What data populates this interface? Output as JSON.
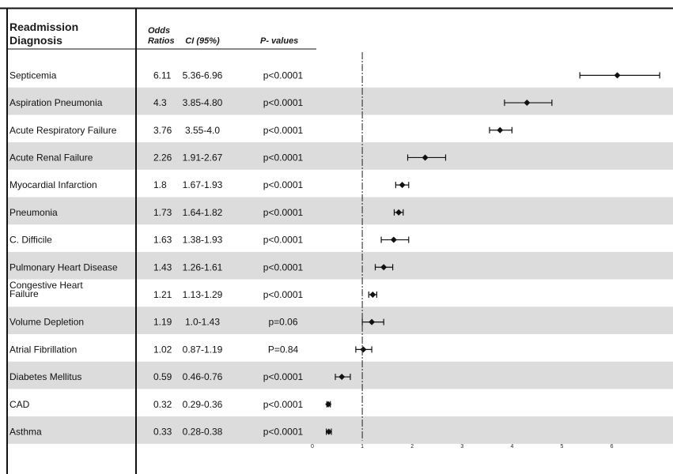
{
  "table": {
    "headers": {
      "diagnosis_line1": "Readmission",
      "diagnosis_line2": "Diagnosis",
      "or_line1": "Odds",
      "or_line2": "Ratios",
      "ci": "CI (95%)",
      "p": "P- values"
    }
  },
  "chart_data": {
    "type": "forest",
    "x_axis": {
      "range": [
        0,
        6.8
      ],
      "ticks": [
        "0",
        "1",
        "2",
        "3",
        "4",
        "5",
        "6"
      ],
      "reference_line": 1
    },
    "rows": [
      {
        "diagnosis": "Septicemia",
        "or": 6.11,
        "ci_label": "5.36-6.96",
        "ci": [
          5.36,
          6.96
        ],
        "p": "p<0.0001",
        "shaded": false
      },
      {
        "diagnosis": "Aspiration Pneumonia",
        "or": 4.3,
        "ci_label": "3.85-4.80",
        "ci": [
          3.85,
          4.8
        ],
        "p": "p<0.0001",
        "shaded": true
      },
      {
        "diagnosis": "Acute Respiratory Failure",
        "or": 3.76,
        "ci_label": "3.55-4.0",
        "ci": [
          3.55,
          4.0
        ],
        "p": "p<0.0001",
        "shaded": false
      },
      {
        "diagnosis": "Acute Renal Failure",
        "or": 2.26,
        "ci_label": "1.91-2.67",
        "ci": [
          1.91,
          2.67
        ],
        "p": "p<0.0001",
        "shaded": true
      },
      {
        "diagnosis": "Myocardial Infarction",
        "or": 1.8,
        "ci_label": "1.67-1.93",
        "ci": [
          1.67,
          1.93
        ],
        "p": "p<0.0001",
        "shaded": false
      },
      {
        "diagnosis": "Pneumonia",
        "or": 1.73,
        "ci_label": "1.64-1.82",
        "ci": [
          1.64,
          1.82
        ],
        "p": "p<0.0001",
        "shaded": true
      },
      {
        "diagnosis": "C. Difficile",
        "or": 1.63,
        "ci_label": "1.38-1.93",
        "ci": [
          1.38,
          1.93
        ],
        "p": "p<0.0001",
        "shaded": false
      },
      {
        "diagnosis": "Pulmonary Heart Disease",
        "or": 1.43,
        "ci_label": "1.26-1.61",
        "ci": [
          1.26,
          1.61
        ],
        "p": "p<0.0001",
        "shaded": true
      },
      {
        "diagnosis": "Congestive Heart Failure",
        "diagnosis_lines": [
          "Congestive Heart",
          "Failure"
        ],
        "or": 1.21,
        "ci_label": "1.13-1.29",
        "ci": [
          1.13,
          1.29
        ],
        "p": "p<0.0001",
        "shaded": false
      },
      {
        "diagnosis": "Volume Depletion",
        "or": 1.19,
        "ci_label": "1.0-1.43",
        "ci": [
          1.0,
          1.43
        ],
        "p": "p=0.06",
        "shaded": true
      },
      {
        "diagnosis": "Atrial Fibrillation",
        "or": 1.02,
        "ci_label": "0.87-1.19",
        "ci": [
          0.87,
          1.19
        ],
        "p": "P=0.84",
        "shaded": false
      },
      {
        "diagnosis": "Diabetes Mellitus",
        "or": 0.59,
        "ci_label": "0.46-0.76",
        "ci": [
          0.46,
          0.76
        ],
        "p": "p<0.0001",
        "shaded": true
      },
      {
        "diagnosis": "CAD",
        "or": 0.32,
        "ci_label": "0.29-0.36",
        "ci": [
          0.29,
          0.36
        ],
        "p": "p<0.0001",
        "shaded": false
      },
      {
        "diagnosis": "Asthma",
        "or": 0.33,
        "ci_label": "0.28-0.38",
        "ci": [
          0.28,
          0.38
        ],
        "p": "p<0.0001",
        "shaded": true
      }
    ]
  }
}
